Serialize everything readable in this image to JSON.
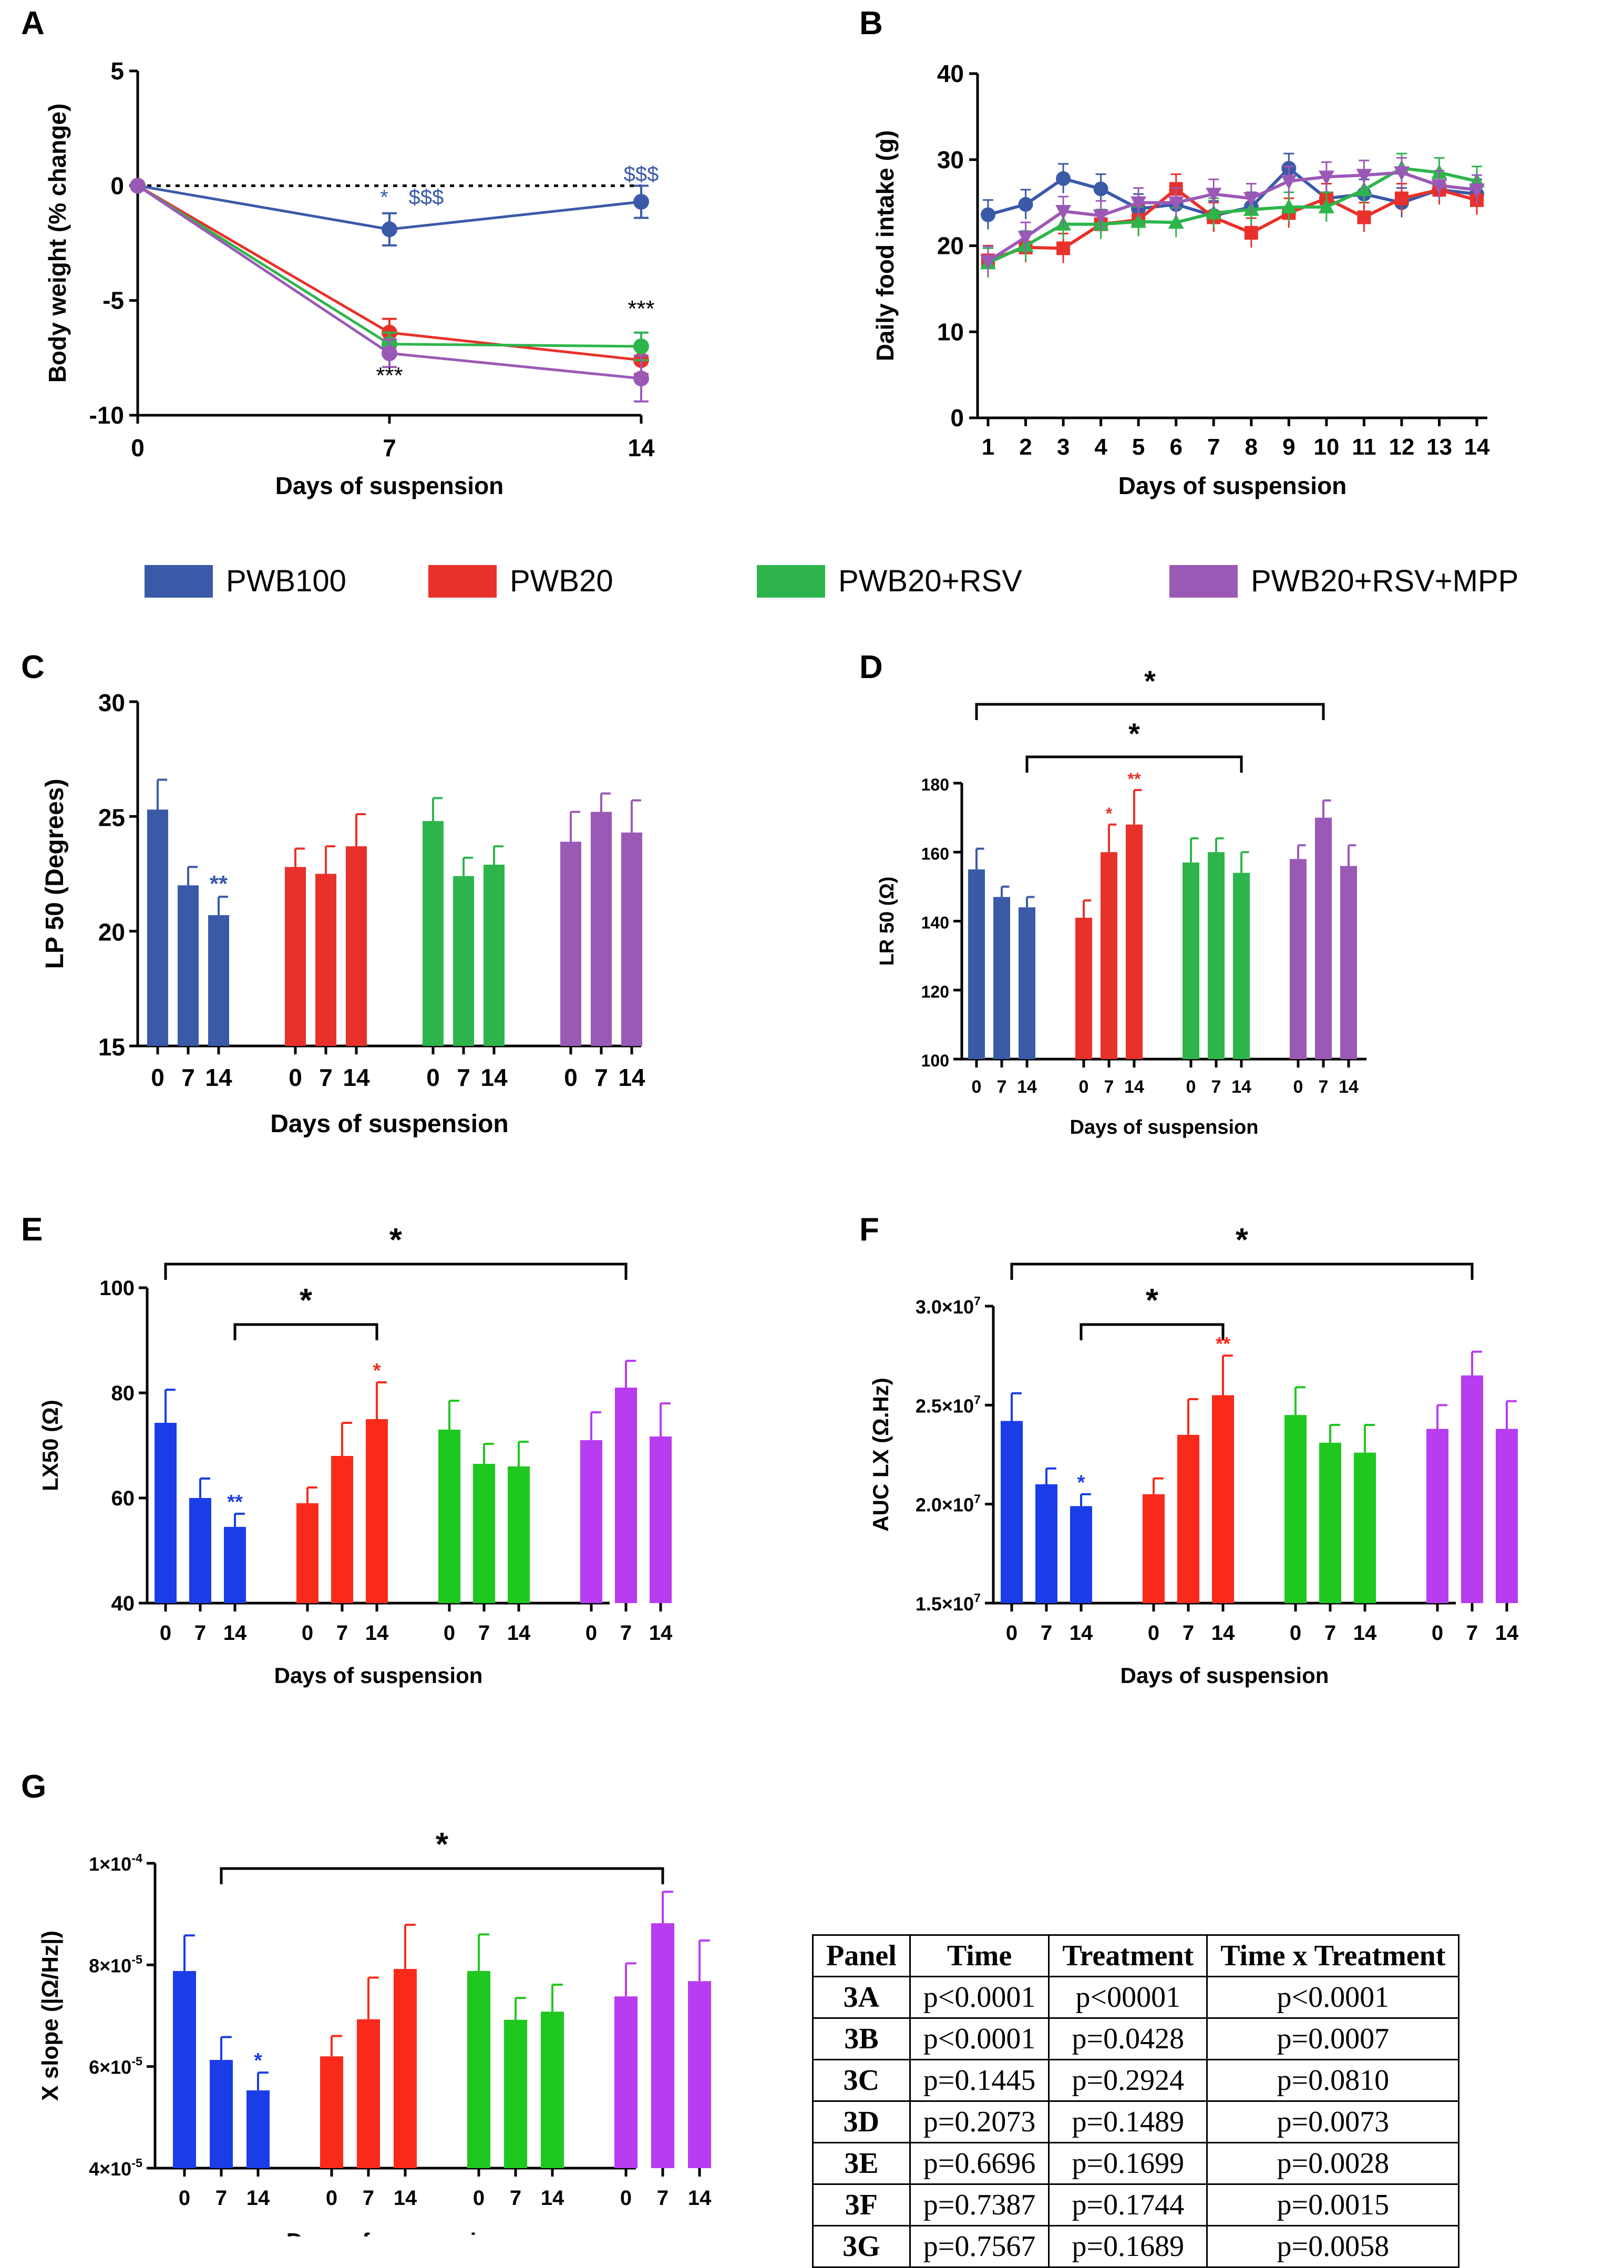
{
  "colors": {
    "legend": {
      "PWB100": "#3a5aa8",
      "PWB20": "#e8312a",
      "PWB20+RSV": "#2db54b",
      "PWB20+RSV+MPP": "#9b59b6"
    },
    "panelsC_D": [
      "#3a5aa8",
      "#e8312a",
      "#2db54b",
      "#9b59b6"
    ],
    "panelsE_G": [
      "#1a3de8",
      "#fa2a1a",
      "#1ec81e",
      "#b83cf0"
    ]
  },
  "legend": {
    "items": [
      "PWB100",
      "PWB20",
      "PWB20+RSV",
      "PWB20+RSV+MPP"
    ]
  },
  "chart_data": [
    {
      "panel": "A",
      "type": "line",
      "xlabel": "Days of suspension",
      "ylabel": "Body weight (% change)",
      "x": [
        0,
        7,
        14
      ],
      "xticks": [
        "0",
        "7",
        "14"
      ],
      "ylim": [
        -10,
        5
      ],
      "yticks": [
        "-10",
        "-5",
        "0",
        "5"
      ],
      "series": [
        {
          "name": "PWB100",
          "values": [
            0,
            -1.9,
            -0.7
          ],
          "err": [
            0,
            0.7,
            0.7
          ]
        },
        {
          "name": "PWB20",
          "values": [
            0,
            -6.4,
            -7.6
          ],
          "err": [
            0,
            0.6,
            0.6
          ]
        },
        {
          "name": "PWB20+RSV",
          "values": [
            0,
            -6.9,
            -7.0
          ],
          "err": [
            0,
            0.5,
            0.6
          ]
        },
        {
          "name": "PWB20+RSV+MPP",
          "values": [
            0,
            -7.3,
            -8.4
          ],
          "err": [
            0,
            0.6,
            1.0
          ]
        }
      ],
      "annotations": [
        "*",
        "$$$",
        "$$$",
        "***",
        "***"
      ]
    },
    {
      "panel": "B",
      "type": "line",
      "xlabel": "Days of suspension",
      "ylabel": "Daily food intake (g)",
      "x": [
        1,
        2,
        3,
        4,
        5,
        6,
        7,
        8,
        9,
        10,
        11,
        12,
        13,
        14
      ],
      "xticks": [
        "1",
        "2",
        "3",
        "4",
        "5",
        "6",
        "7",
        "8",
        "9",
        "10",
        "11",
        "12",
        "13",
        "14"
      ],
      "ylim": [
        0,
        40
      ],
      "yticks": [
        "0",
        "10",
        "20",
        "30",
        "40"
      ],
      "series": [
        {
          "name": "PWB100",
          "values": [
            23.6,
            24.8,
            27.8,
            26.6,
            24.3,
            24.8,
            23.5,
            24.5,
            29.0,
            25.5,
            26.0,
            25.0,
            26.5,
            26.0
          ]
        },
        {
          "name": "PWB20",
          "values": [
            18.3,
            19.8,
            19.7,
            22.5,
            23.0,
            26.6,
            23.3,
            21.5,
            23.8,
            25.5,
            23.3,
            25.5,
            26.5,
            25.3
          ]
        },
        {
          "name": "PWB20+RSV",
          "values": [
            18.0,
            20.0,
            22.5,
            22.5,
            22.8,
            22.7,
            23.8,
            24.2,
            24.5,
            24.5,
            26.5,
            29.0,
            28.5,
            27.5
          ]
        },
        {
          "name": "PWB20+RSV+MPP",
          "values": [
            18.2,
            21.0,
            24.0,
            23.5,
            25.0,
            25.0,
            26.0,
            25.5,
            27.5,
            28.0,
            28.2,
            28.5,
            27.0,
            26.5
          ]
        }
      ]
    },
    {
      "panel": "C",
      "type": "bar",
      "xlabel": "Days of suspension",
      "ylabel": "LP 50 (Degrees)",
      "ylim": [
        15,
        30
      ],
      "yticks": [
        "15",
        "20",
        "25",
        "30"
      ],
      "ticks": [
        "0",
        "7",
        "14"
      ],
      "groups": [
        {
          "values": [
            25.3,
            22.0,
            20.7
          ],
          "err": [
            1.3,
            0.8,
            0.8
          ],
          "sig": [
            "",
            "",
            "**"
          ]
        },
        {
          "values": [
            22.8,
            22.5,
            23.7
          ],
          "err": [
            0.8,
            1.2,
            1.4
          ],
          "sig": [
            "",
            "",
            ""
          ]
        },
        {
          "values": [
            24.8,
            22.4,
            22.9
          ],
          "err": [
            1.0,
            0.8,
            0.8
          ],
          "sig": [
            "",
            "",
            ""
          ]
        },
        {
          "values": [
            23.9,
            25.2,
            24.3
          ],
          "err": [
            1.3,
            0.8,
            1.4
          ],
          "sig": [
            "",
            "",
            ""
          ]
        }
      ]
    },
    {
      "panel": "D",
      "type": "bar",
      "xlabel": "Days of suspension",
      "ylabel": "LR 50 (Ω)",
      "ylim": [
        100,
        180
      ],
      "yticks": [
        "100",
        "120",
        "140",
        "160",
        "180"
      ],
      "ticks": [
        "0",
        "7",
        "14"
      ],
      "groups": [
        {
          "values": [
            155,
            147,
            144
          ],
          "err": [
            6,
            3,
            3
          ],
          "sig": [
            "",
            "",
            ""
          ]
        },
        {
          "values": [
            141,
            160,
            168
          ],
          "err": [
            5,
            8,
            10
          ],
          "sig": [
            "",
            "*",
            "**"
          ]
        },
        {
          "values": [
            157,
            160,
            154
          ],
          "err": [
            7,
            4,
            6
          ],
          "sig": [
            "",
            "",
            ""
          ]
        },
        {
          "values": [
            158,
            170,
            156
          ],
          "err": [
            4,
            5,
            6
          ],
          "sig": [
            "",
            "",
            ""
          ]
        }
      ],
      "brackets": [
        "*",
        "*"
      ]
    },
    {
      "panel": "E",
      "type": "bar",
      "xlabel": "Days of suspension",
      "ylabel": "LX50 (Ω)",
      "ylim": [
        40,
        100
      ],
      "yticks": [
        "40",
        "60",
        "80",
        "100"
      ],
      "ticks": [
        "0",
        "7",
        "14"
      ],
      "groups": [
        {
          "values": [
            74.3,
            60.0,
            54.5
          ],
          "err": [
            6.3,
            3.7,
            2.5
          ],
          "sig": [
            "",
            "",
            "**"
          ]
        },
        {
          "values": [
            59.0,
            68.0,
            75.0
          ],
          "err": [
            3.0,
            6.3,
            7.0
          ],
          "sig": [
            "",
            "",
            "*"
          ]
        },
        {
          "values": [
            73.0,
            66.5,
            66.0
          ],
          "err": [
            5.5,
            3.8,
            4.7
          ],
          "sig": [
            "",
            "",
            ""
          ]
        },
        {
          "values": [
            71.0,
            81.0,
            71.7
          ],
          "err": [
            5.3,
            5.1,
            6.3
          ],
          "sig": [
            "",
            "",
            ""
          ]
        }
      ],
      "brackets": [
        "*",
        "*"
      ]
    },
    {
      "panel": "F",
      "type": "bar",
      "xlabel": "Days of suspension",
      "ylabel": "AUC LX (Ω.Hz)",
      "ylim": [
        15000000,
        30000000
      ],
      "yticks": [
        "1.5×10",
        "2.0×10",
        "2.5×10",
        "3.0×10"
      ],
      "ytick_exp": "7",
      "ticks": [
        "0",
        "7",
        "14"
      ],
      "groups": [
        {
          "values": [
            24200000,
            21000000,
            19900000
          ],
          "err": [
            1400000,
            800000,
            600000
          ],
          "sig": [
            "",
            "",
            "*"
          ]
        },
        {
          "values": [
            20500000,
            23500000,
            25500000
          ],
          "err": [
            800000,
            1800000,
            2000000
          ],
          "sig": [
            "",
            "",
            ""
          ]
        },
        {
          "values": [
            24500000,
            23100000,
            22600000
          ],
          "err": [
            1400000,
            900000,
            1400000
          ],
          "sig": [
            "",
            "",
            ""
          ]
        },
        {
          "values": [
            23800000,
            26500000,
            23800000
          ],
          "err": [
            1200000,
            1200000,
            1400000
          ],
          "sig": [
            "",
            "",
            ""
          ]
        }
      ],
      "extra_sig": "**",
      "brackets": [
        "*",
        "*"
      ]
    },
    {
      "panel": "G",
      "type": "bar",
      "xlabel": "Days of suspension",
      "ylabel": "X slope (|Ω/Hz|)",
      "ylim": [
        4e-05,
        0.0001
      ],
      "yticks": [
        "4×10",
        "6×10",
        "8×10",
        "1×10"
      ],
      "ytick_exps": [
        "-5",
        "-5",
        "-5",
        "-4"
      ],
      "ticks": [
        "0",
        "7",
        "14"
      ],
      "groups": [
        {
          "values": [
            7.88e-05,
            6.13e-05,
            5.53e-05
          ],
          "err": [
            7e-06,
            4.5e-06,
            3.5e-06
          ],
          "sig": [
            "",
            "",
            "*"
          ]
        },
        {
          "values": [
            6.2e-05,
            6.93e-05,
            7.92e-05
          ],
          "err": [
            4e-06,
            8.2e-06,
            8.7e-06
          ],
          "sig": [
            "",
            "",
            ""
          ]
        },
        {
          "values": [
            7.88e-05,
            6.92e-05,
            7.08e-05
          ],
          "err": [
            7.2e-06,
            4.3e-06,
            5.3e-06
          ],
          "sig": [
            "",
            "",
            ""
          ]
        },
        {
          "values": [
            7.38e-05,
            8.82e-05,
            7.68e-05
          ],
          "err": [
            6.5e-06,
            6.2e-06,
            8e-06
          ],
          "sig": [
            "",
            "",
            ""
          ]
        }
      ],
      "brackets": [
        "*"
      ]
    },
    {
      "panel": "table",
      "type": "table",
      "columns": [
        "Panel",
        "Time",
        "Treatment",
        "Time x Treatment"
      ],
      "rows": [
        [
          "3A",
          "p<0.0001",
          "p<00001",
          "p<0.0001"
        ],
        [
          "3B",
          "p<0.0001",
          "p=0.0428",
          "p=0.0007"
        ],
        [
          "3C",
          "p=0.1445",
          "p=0.2924",
          "p=0.0810"
        ],
        [
          "3D",
          "p=0.2073",
          "p=0.1489",
          "p=0.0073"
        ],
        [
          "3E",
          "p=0.6696",
          "p=0.1699",
          "p=0.0028"
        ],
        [
          "3F",
          "p=0.7387",
          "p=0.1744",
          "p=0.0015"
        ],
        [
          "3G",
          "p=0.7567",
          "p=0.1689",
          "p=0.0058"
        ]
      ]
    }
  ],
  "panel_labels": [
    "A",
    "B",
    "C",
    "D",
    "E",
    "F",
    "G"
  ]
}
